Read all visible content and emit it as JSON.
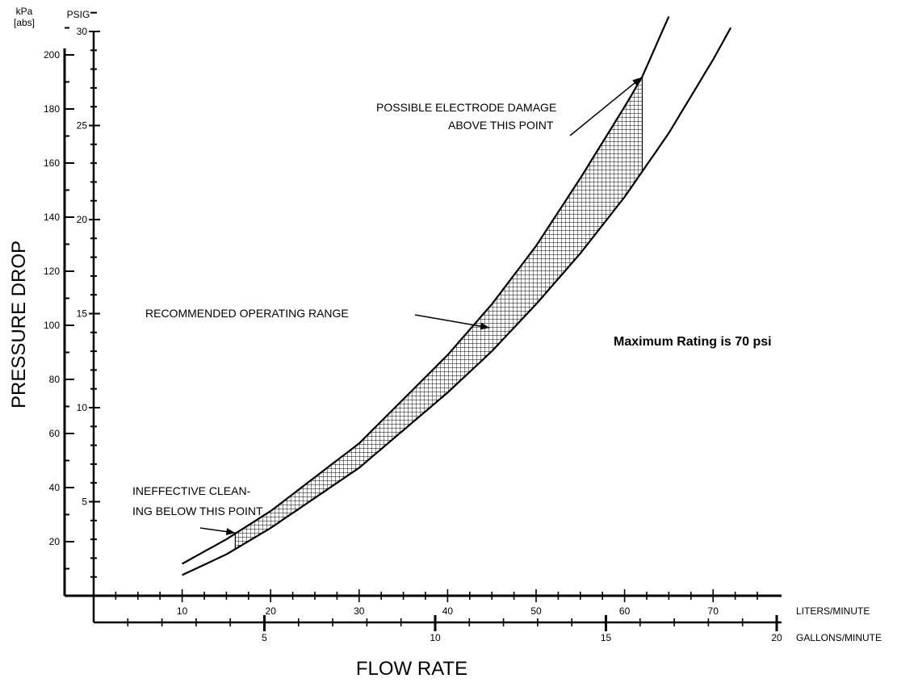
{
  "chart_data": {
    "type": "line",
    "title": "",
    "ylabel": "PRESSURE DROP",
    "xlabel": "FLOW RATE",
    "grid": false,
    "axes": {
      "y_kpa": {
        "unit_label_line1": "kPa",
        "unit_label_line2": "[abs]",
        "range": [
          0,
          212
        ],
        "ticks": [
          20,
          40,
          60,
          80,
          100,
          120,
          140,
          160,
          180,
          200
        ],
        "minor_step": 10
      },
      "y_psig": {
        "unit_label": "PSIG",
        "range": [
          0,
          31
        ],
        "ticks": [
          5,
          10,
          15,
          20,
          25,
          30
        ],
        "minor_step": 1
      },
      "x_lpm": {
        "unit_label": "LITERS/MINUTE",
        "range": [
          0,
          77
        ],
        "ticks": [
          10,
          20,
          30,
          40,
          50,
          60,
          70
        ],
        "minor_step": 2.5
      },
      "x_gpm": {
        "unit_label": "GALLONS/MINUTE",
        "range": [
          0,
          20
        ],
        "ticks": [
          5,
          10,
          15,
          20
        ],
        "minor_step": 1
      }
    },
    "series": [
      {
        "style": "upper-boundary",
        "x_lpm": [
          10,
          15,
          20,
          30,
          40,
          45,
          50,
          55,
          60,
          62,
          65
        ],
        "y_psig": [
          1.7,
          3.0,
          4.5,
          8.1,
          12.8,
          15.5,
          18.6,
          22.2,
          26.0,
          27.6,
          30.8
        ]
      },
      {
        "style": "lower-boundary",
        "x_lpm": [
          10,
          15,
          20,
          30,
          40,
          45,
          50,
          55,
          60,
          65,
          70,
          72
        ],
        "y_psig": [
          1.1,
          2.2,
          3.6,
          6.8,
          10.8,
          13.0,
          15.5,
          18.2,
          21.2,
          24.6,
          28.5,
          30.2
        ]
      }
    ],
    "recommended_range": {
      "x_lpm": [
        16,
        62
      ]
    },
    "annotations": [
      {
        "id": "electrode",
        "lines": [
          "POSSIBLE ELECTRODE DAMAGE",
          "ABOVE THIS POINT"
        ]
      },
      {
        "id": "range",
        "lines": [
          "RECOMMENDED OPERATING RANGE"
        ]
      },
      {
        "id": "cleaning",
        "lines": [
          "INEFFECTIVE CLEAN-",
          "ING BELOW THIS POINT"
        ]
      }
    ],
    "note": "Maximum Rating is 70 psi"
  }
}
